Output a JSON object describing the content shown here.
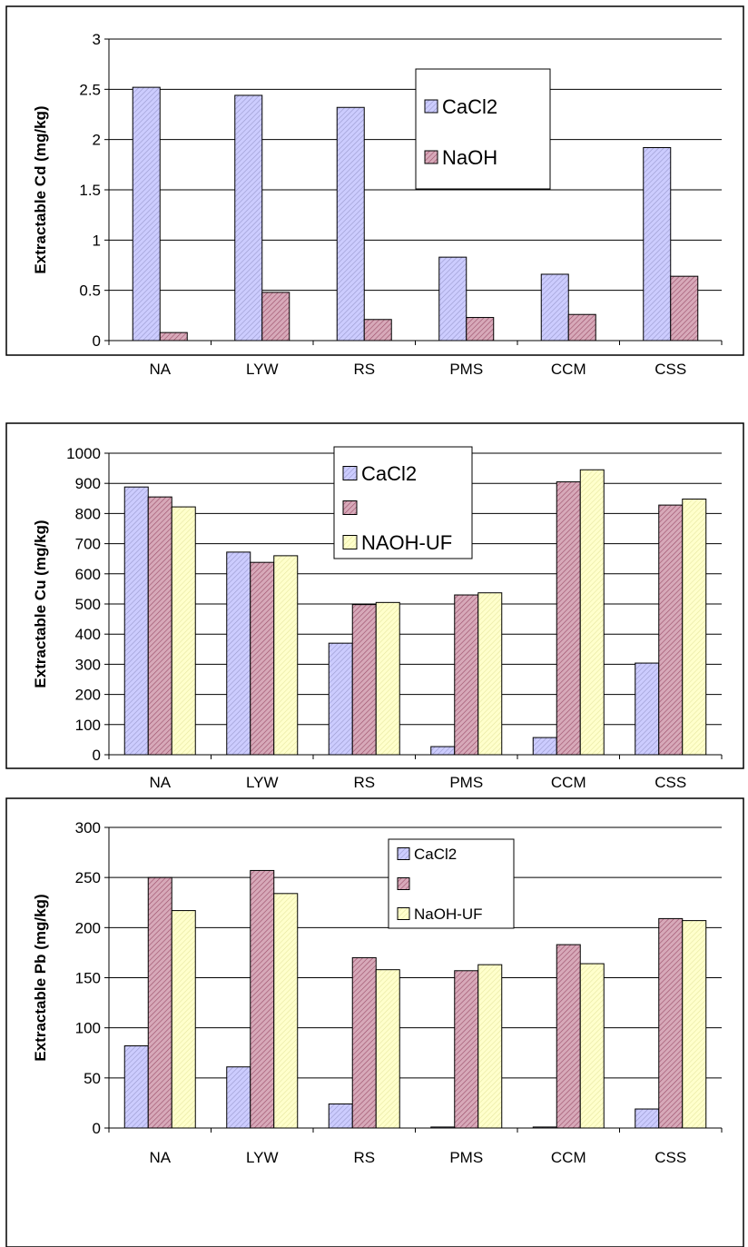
{
  "chart_data": [
    {
      "type": "bar",
      "title": "",
      "xlabel": "",
      "ylabel": "Extractable Cd (mg/kg)",
      "categories": [
        "NA",
        "LYW",
        "RS",
        "PMS",
        "CCM",
        "CSS"
      ],
      "ylim": [
        0,
        3
      ],
      "yticks": [
        0,
        0.5,
        1,
        1.5,
        2,
        2.5,
        3
      ],
      "ytick_labels": [
        "0",
        "0.5",
        "1",
        "1.5",
        "2",
        "2.5",
        "3"
      ],
      "grid": true,
      "legend": "top-center",
      "series": [
        {
          "name": "CaCl2",
          "values": [
            2.52,
            2.44,
            2.32,
            0.83,
            0.66,
            1.92
          ],
          "color": "#ccccff"
        },
        {
          "name": "NaOH",
          "values": [
            0.08,
            0.48,
            0.21,
            0.23,
            0.26,
            0.64
          ],
          "color": "#c98da1"
        }
      ]
    },
    {
      "type": "bar",
      "title": "",
      "xlabel": "",
      "ylabel": "Extractable Cu (mg/kg)",
      "categories": [
        "NA",
        "LYW",
        "RS",
        "PMS",
        "CCM",
        "CSS"
      ],
      "ylim": [
        0,
        1000
      ],
      "yticks": [
        0,
        100,
        200,
        300,
        400,
        500,
        600,
        700,
        800,
        900,
        1000
      ],
      "ytick_labels": [
        "0",
        "100",
        "200",
        "300",
        "400",
        "500",
        "600",
        "700",
        "800",
        "900",
        "1000"
      ],
      "grid": true,
      "legend": "top-center",
      "series": [
        {
          "name": "CaCl2",
          "values": [
            888,
            672,
            370,
            27,
            57,
            304
          ],
          "color": "#ccccff"
        },
        {
          "name": "",
          "values": [
            855,
            638,
            498,
            530,
            905,
            828
          ],
          "color": "#c98da1"
        },
        {
          "name": "NAOH-UF",
          "values": [
            822,
            660,
            505,
            537,
            945,
            848
          ],
          "color": "#ffffcc"
        }
      ]
    },
    {
      "type": "bar",
      "title": "",
      "xlabel": "",
      "ylabel": "Extractable Pb (mg/kg)",
      "categories": [
        "NA",
        "LYW",
        "RS",
        "PMS",
        "CCM",
        "CSS"
      ],
      "ylim": [
        0,
        300
      ],
      "yticks": [
        0,
        50,
        100,
        150,
        200,
        250,
        300
      ],
      "ytick_labels": [
        "0",
        "50",
        "100",
        "150",
        "200",
        "250",
        "300"
      ],
      "grid": true,
      "legend": "top-center",
      "series": [
        {
          "name": "CaCl2",
          "values": [
            82,
            61,
            24,
            1,
            1,
            19
          ],
          "color": "#ccccff"
        },
        {
          "name": "",
          "values": [
            250,
            257,
            170,
            157,
            183,
            209
          ],
          "color": "#c98da1"
        },
        {
          "name": "NaOH-UF",
          "values": [
            217,
            234,
            158,
            163,
            164,
            207
          ],
          "color": "#ffffcc"
        }
      ]
    }
  ]
}
